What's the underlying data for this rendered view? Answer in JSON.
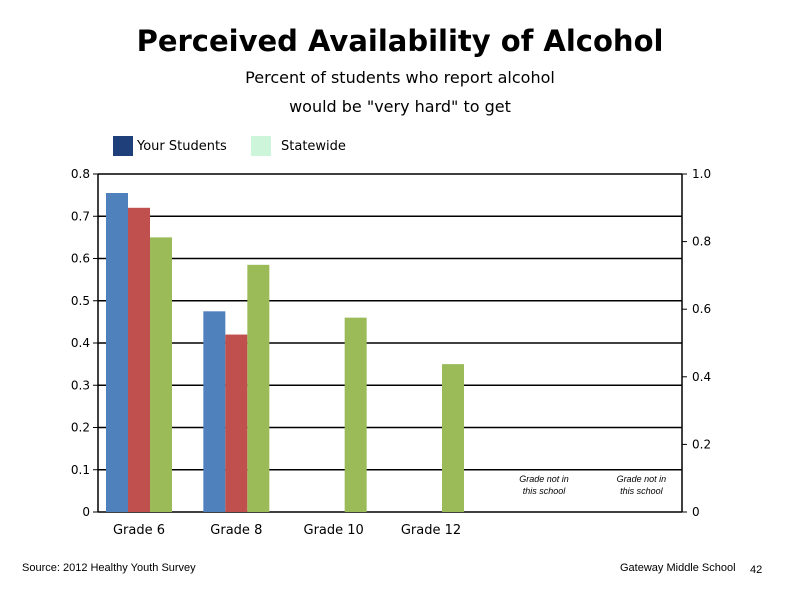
{
  "title": "Perceived Availability of Alcohol",
  "subtitle_line1": "Percent of students who report alcohol",
  "subtitle_line2": "would be \"very hard\" to get",
  "legend": [
    {
      "label": "Your Students",
      "color": "#1F3F7A"
    },
    {
      "label": "Statewide",
      "color": "#CCF5DA"
    }
  ],
  "footer": {
    "source": "Source: 2012 Healthy Youth Survey",
    "school": "Gateway Middle  School",
    "page": "42"
  },
  "chart_data": {
    "type": "bar",
    "categories": [
      "Grade 6",
      "Grade 8",
      "Grade 10",
      "Grade 12",
      "",
      ""
    ],
    "series": [
      {
        "color": "#4F81BD",
        "values": [
          0.755,
          0.475,
          null,
          null,
          null,
          null
        ]
      },
      {
        "color": "#C0504D",
        "values": [
          0.72,
          0.42,
          null,
          null,
          null,
          null
        ]
      },
      {
        "color": "#9BBB59",
        "values": [
          0.65,
          0.585,
          0.46,
          0.35,
          null,
          null
        ]
      }
    ],
    "ylim": [
      0,
      0.8
    ],
    "yticks": [
      "0",
      "0.1",
      "0.2",
      "0.3",
      "0.4",
      "0.5",
      "0.6",
      "0.7",
      "0.8"
    ],
    "y2lim": [
      0,
      1.0
    ],
    "y2ticks": [
      "0",
      "0.2",
      "0.4",
      "0.6",
      "0.8",
      "1.0"
    ],
    "gridlines": [
      0.1,
      0.2,
      0.3,
      0.4,
      0.5,
      0.6,
      0.7,
      0.8
    ],
    "annotations": [
      {
        "category_index": 4,
        "line1": "Grade not in",
        "line2": "this school"
      },
      {
        "category_index": 5,
        "line1": "Grade not in",
        "line2": "this school"
      }
    ]
  }
}
